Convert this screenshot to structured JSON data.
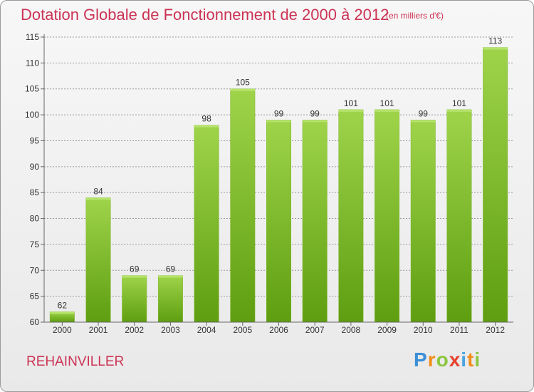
{
  "header": {
    "title": "Dotation Globale de Fonctionnement de 2000 à 2012",
    "subtitle": "(en milliers d'€)"
  },
  "footer": {
    "commune": "REHAINVILLER",
    "logo_letters": [
      "P",
      "r",
      "o",
      "x",
      "i",
      "t",
      "i"
    ]
  },
  "colors": {
    "title": "#cc3355",
    "bar_light": "#9fd44a",
    "bar_dark": "#5e9e10",
    "grid": "#9a9a9a"
  },
  "chart_data": {
    "type": "bar",
    "title": "Dotation Globale de Fonctionnement de 2000 à 2012",
    "xlabel": "",
    "ylabel": "",
    "ylim": [
      60,
      115
    ],
    "yticks": [
      60,
      65,
      70,
      75,
      80,
      85,
      90,
      95,
      100,
      105,
      110,
      115
    ],
    "grid": true,
    "categories": [
      "2000",
      "2001",
      "2002",
      "2003",
      "2004",
      "2005",
      "2006",
      "2007",
      "2008",
      "2009",
      "2010",
      "2011",
      "2012"
    ],
    "values": [
      62,
      84,
      69,
      69,
      98,
      105,
      99,
      99,
      101,
      101,
      99,
      101,
      113
    ]
  }
}
